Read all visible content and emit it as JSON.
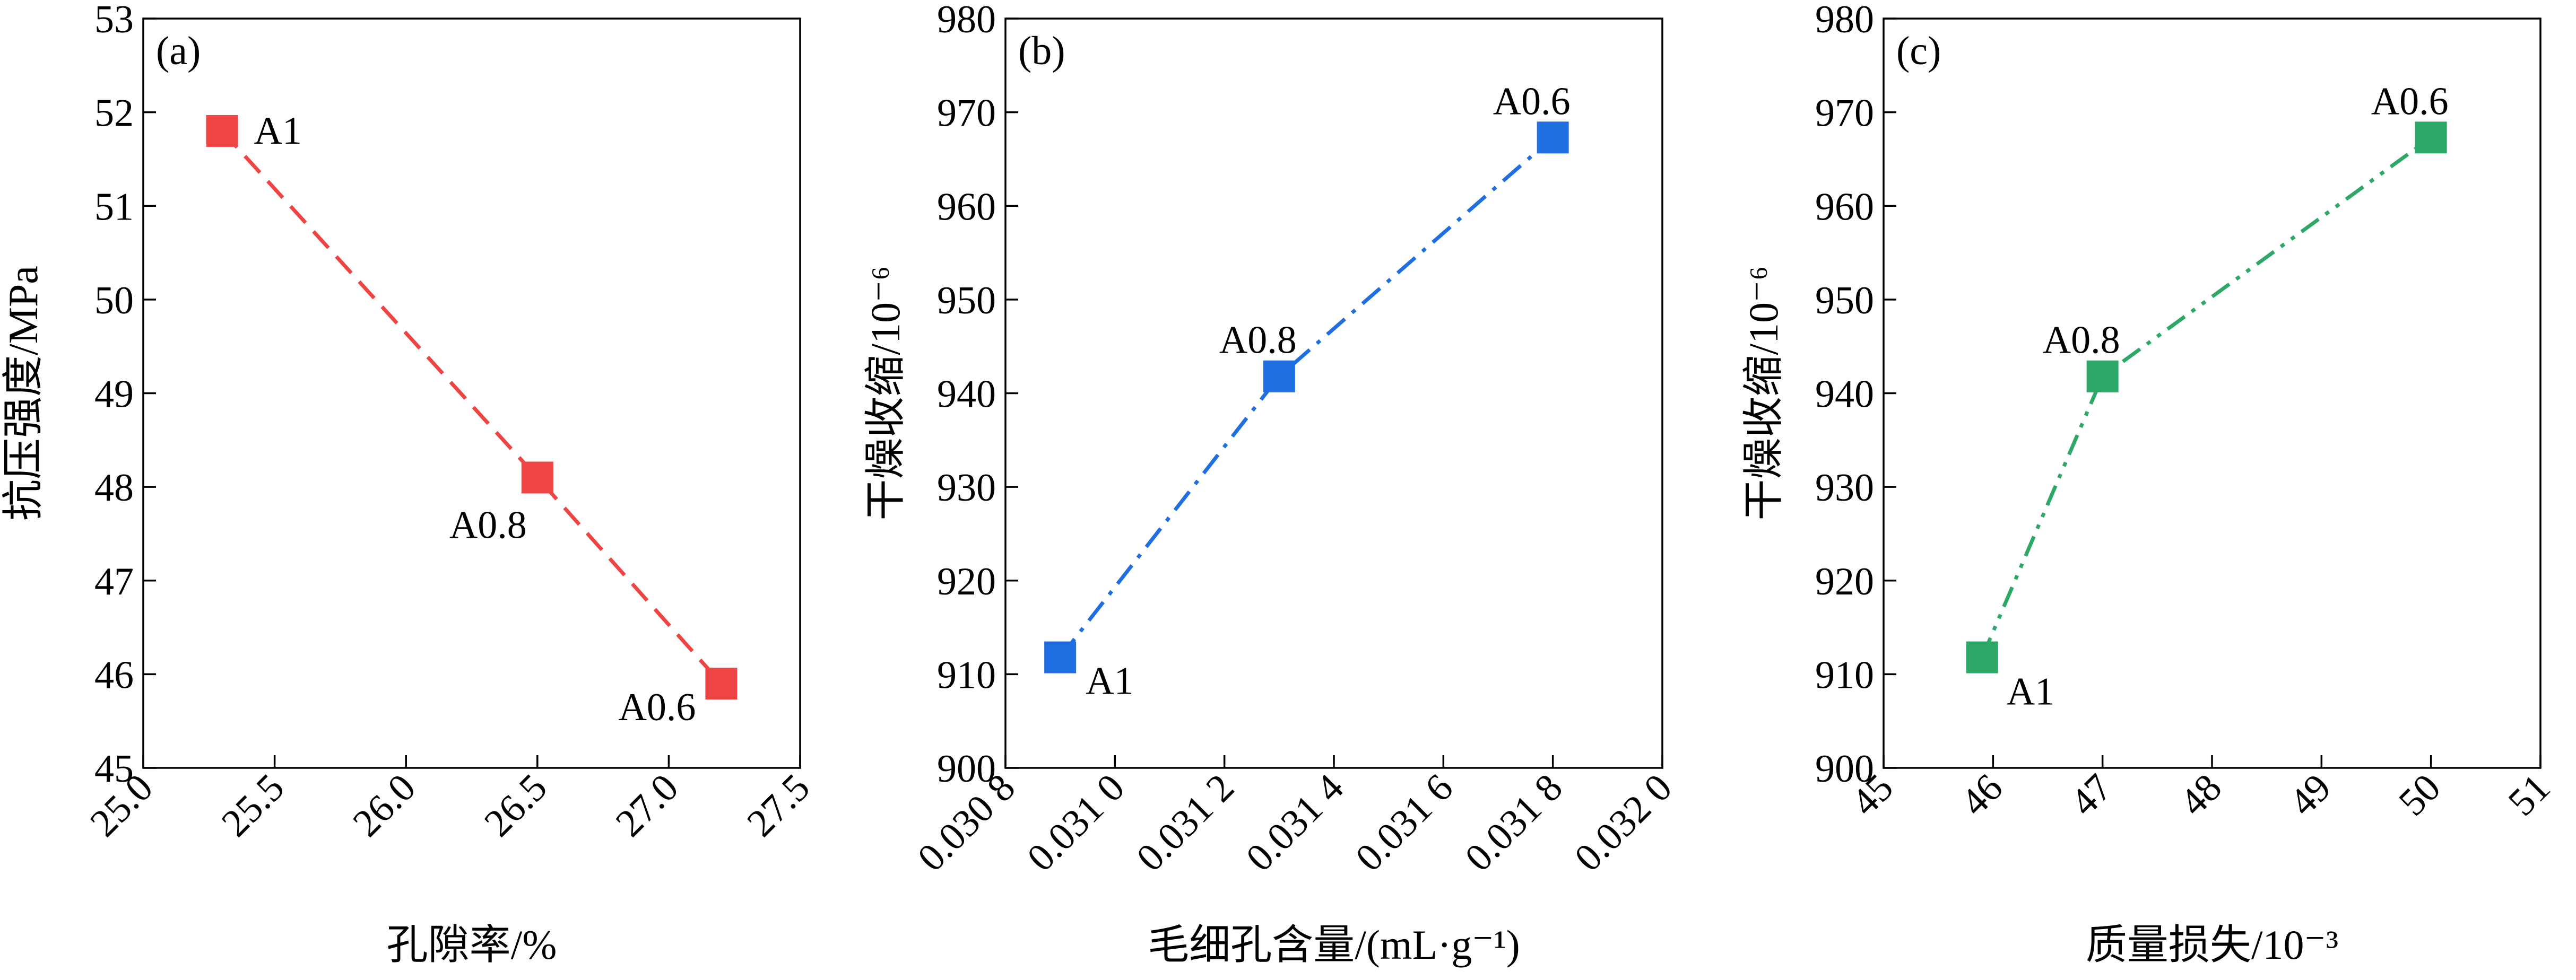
{
  "chart_data": [
    {
      "panel": "(a)",
      "type": "line",
      "xlabel": "孔隙率/%",
      "ylabel": "抗压强度/MPa",
      "xlim": [
        25.0,
        27.5
      ],
      "ylim": [
        45,
        53
      ],
      "xticks": [
        "25.0",
        "25.5",
        "26.0",
        "26.5",
        "27.0",
        "27.5"
      ],
      "yticks": [
        "45",
        "46",
        "47",
        "48",
        "49",
        "50",
        "51",
        "52",
        "53"
      ],
      "color": "#ef4444",
      "line_style": "dashed",
      "points": [
        {
          "label": "A1",
          "x": 25.3,
          "y": 51.8
        },
        {
          "label": "A0.8",
          "x": 26.5,
          "y": 48.1
        },
        {
          "label": "A0.6",
          "x": 27.2,
          "y": 45.9
        }
      ]
    },
    {
      "panel": "(b)",
      "type": "line",
      "xlabel": "毛细孔含量/(mL·g⁻¹)",
      "ylabel": "干燥收缩/10⁻⁶",
      "xlim": [
        0.0308,
        0.032
      ],
      "ylim": [
        900,
        980
      ],
      "xticks": [
        "0.030 8",
        "0.031 0",
        "0.031 2",
        "0.031 4",
        "0.031 6",
        "0.031 8",
        "0.032 0"
      ],
      "yticks": [
        "900",
        "910",
        "920",
        "930",
        "940",
        "950",
        "960",
        "970",
        "980"
      ],
      "color": "#1f6fe0",
      "line_style": "dash-dot",
      "points": [
        {
          "label": "A1",
          "x": 0.0309,
          "y": 911.8
        },
        {
          "label": "A0.8",
          "x": 0.0313,
          "y": 941.8
        },
        {
          "label": "A0.6",
          "x": 0.0318,
          "y": 967.3
        }
      ]
    },
    {
      "panel": "(c)",
      "type": "line",
      "xlabel": "质量损失/10⁻³",
      "ylabel": "干燥收缩/10⁻⁶",
      "xlim": [
        45,
        51
      ],
      "ylim": [
        900,
        980
      ],
      "xticks": [
        "45",
        "46",
        "47",
        "48",
        "49",
        "50",
        "51"
      ],
      "yticks": [
        "900",
        "910",
        "920",
        "930",
        "940",
        "950",
        "960",
        "970",
        "980"
      ],
      "color": "#2ea866",
      "line_style": "dash-dot-dot",
      "points": [
        {
          "label": "A1",
          "x": 45.9,
          "y": 911.8
        },
        {
          "label": "A0.8",
          "x": 47.0,
          "y": 941.8
        },
        {
          "label": "A0.6",
          "x": 50.0,
          "y": 967.3
        }
      ]
    }
  ]
}
